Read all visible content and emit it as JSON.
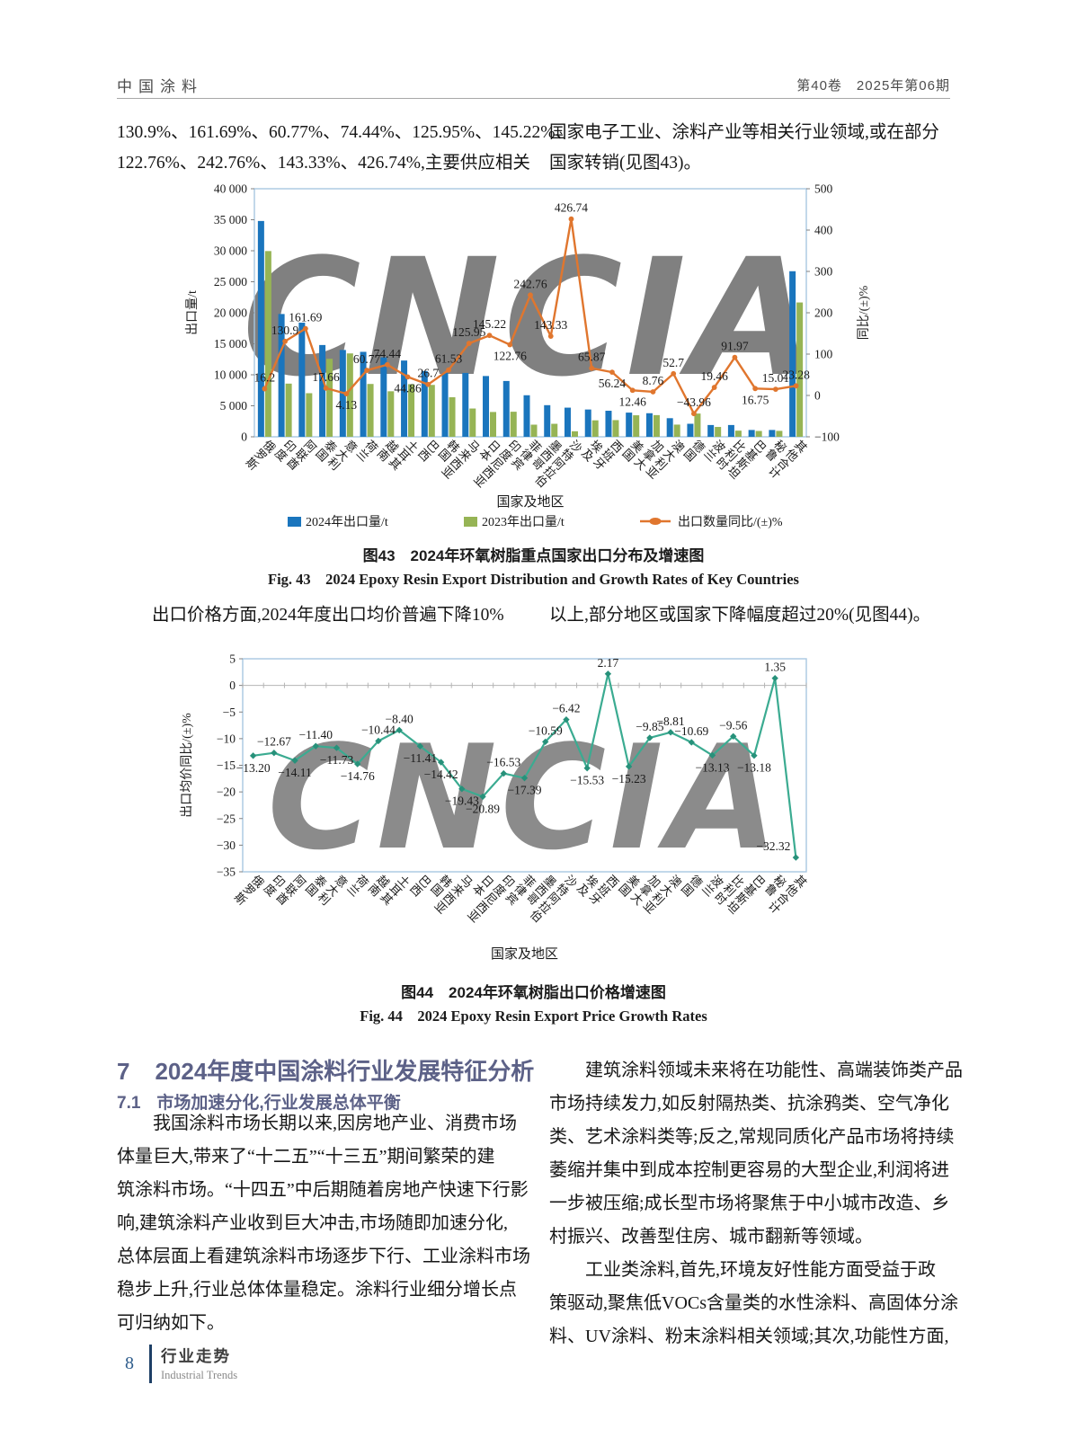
{
  "page": {
    "header": {
      "journal": "中国涂料",
      "issue": "第40卷　2025年第06期"
    },
    "para_top": {
      "left": [
        "130.9%、161.69%、60.77%、74.44%、125.95%、145.22%、",
        "122.76%、242.76%、143.33%、426.74%,主要供应相关"
      ],
      "right": [
        "国家电子工业、涂料产业等相关行业领域,或在部分",
        "国家转销(见图43)。"
      ]
    },
    "para_mid": {
      "left": "　　出口价格方面,2024年度出口均价普遍下降10%",
      "right": "以上,部分地区或国家下降幅度超过20%(见图44)。"
    },
    "section": {
      "number": "7",
      "title": "2024年度中国涂料行业发展特征分析"
    },
    "subsection": {
      "number": "7.1",
      "title": "市场加速分化,行业发展总体平衡"
    },
    "body_left": [
      "　　我国涂料市场长期以来,因房地产业、消费市场",
      "体量巨大,带来了“十二五”“十三五”期间繁荣的建",
      "筑涂料市场。“十四五”中后期随着房地产快速下行影",
      "响,建筑涂料产业收到巨大冲击,市场随即加速分化,",
      "总体层面上看建筑涂料市场逐步下行、工业涂料市场",
      "稳步上升,行业总体体量稳定。涂料行业细分增长点",
      "可归纳如下。"
    ],
    "body_right": [
      "　　建筑涂料领域未来将在功能性、高端装饰类产品",
      "市场持续发力,如反射隔热类、抗涂鸦类、空气净化",
      "类、艺术涂料类等;反之,常规同质化产品市场将持续",
      "萎缩并集中到成本控制更容易的大型企业,利润将进",
      "一步被压缩;成长型市场将聚焦于中小城市改造、乡",
      "村振兴、改善型住房、城市翻新等领域。",
      "　　工业类涂料,首先,环境友好性能方面受益于政",
      "策驱动,聚焦低VOCs含量类的水性涂料、高固体分涂",
      "料、UV涂料、粉末涂料相关领域;其次,功能性方面,"
    ],
    "footer": {
      "page_number": "8",
      "column_cn": "行业走势",
      "column_en": "Industrial Trends"
    }
  },
  "chart_data": [
    {
      "id": "fig43",
      "type": "bar",
      "caption_cn": "图43　2024年环氧树脂重点国家出口分布及增速图",
      "caption_en": "Fig. 43　2024 Epoxy Resin Export Distribution and Growth Rates of Key Countries",
      "x_title": "国家及地区",
      "watermark": "CNCIA",
      "legend_position": "bottom",
      "grid": false,
      "left_axis": {
        "title": "出口量/t",
        "min": 0,
        "max": 40000,
        "step": 5000
      },
      "right_axis": {
        "title": "同比/(±)%",
        "min": -100,
        "max": 500,
        "step": 100
      },
      "categories": [
        "俄罗斯",
        "印度",
        "阿联酋",
        "泰国",
        "意大利",
        "荷兰",
        "越南",
        "土耳其",
        "巴西",
        "韩国",
        "马来西亚",
        "日本",
        "印度尼西亚",
        "菲律宾",
        "墨西哥",
        "沙特阿拉伯",
        "埃及",
        "西班牙",
        "美国",
        "加拿大",
        "澳大利亚",
        "德国",
        "波兰",
        "比利时",
        "巴基斯坦",
        "秘鲁",
        "其他合计"
      ],
      "series": [
        {
          "name": "2024年出口量/t",
          "type": "bar",
          "color": "#1a75bd",
          "values": [
            34800,
            19800,
            18400,
            14800,
            14000,
            13700,
            12800,
            12300,
            10600,
            10300,
            10300,
            9800,
            9000,
            6700,
            5100,
            4700,
            4400,
            4200,
            3900,
            3800,
            3000,
            2100,
            1900,
            1900,
            1100,
            1100,
            26700
          ]
        },
        {
          "name": "2023年出口量/t",
          "type": "bar",
          "color": "#96b455",
          "values": [
            29950,
            8575,
            7030,
            12580,
            13445,
            8520,
            7340,
            8490,
            8365,
            6375,
            4560,
            4000,
            4040,
            1955,
            2095,
            890,
            2655,
            2690,
            3470,
            3495,
            1965,
            3750,
            1590,
            990,
            940,
            955,
            21660
          ]
        },
        {
          "name": "出口数量同比/(±)%",
          "type": "line",
          "color": "#e0762e",
          "axis": "right",
          "values": [
            16.2,
            130.9,
            161.69,
            17.66,
            4.13,
            60.77,
            74.44,
            44.86,
            26.7,
            61.53,
            125.95,
            145.22,
            122.76,
            242.76,
            143.33,
            426.74,
            65.87,
            56.24,
            12.46,
            8.76,
            52.7,
            -43.96,
            19.46,
            91.97,
            16.75,
            15.01,
            23.28
          ],
          "labels": [
            "16.2",
            "130.9",
            "161.69",
            "17.66",
            "4.13",
            "60.77",
            "74.44",
            "44.86",
            "26.7",
            "61.53",
            "125.95",
            "145.22",
            "122.76",
            "242.76",
            "143.33",
            "426.74",
            "65.87",
            "56.24",
            "12.46",
            "8.76",
            "52.7",
            "−43.96",
            "19.46",
            "91.97",
            "16.75",
            "15.01",
            "23.28"
          ],
          "label_side": [
            "a",
            "a",
            "a",
            "a",
            "b",
            "a",
            "a",
            "b",
            "a",
            "a",
            "a",
            "a",
            "b",
            "a",
            "a",
            "a",
            "a",
            "b",
            "b",
            "a",
            "a",
            "a",
            "a",
            "a",
            "b",
            "a",
            "a"
          ]
        }
      ]
    },
    {
      "id": "fig44",
      "type": "line",
      "caption_cn": "图44　2024年环氧树脂出口价格增速图",
      "caption_en": "Fig. 44　2024 Epoxy Resin Export Price Growth Rates",
      "x_title": "国家及地区",
      "watermark": "CNCIA",
      "grid": false,
      "y_axis": {
        "title": "出口均价同比/(±)%",
        "min": -35,
        "max": 5,
        "step": 5
      },
      "categories": [
        "俄罗斯",
        "印度",
        "阿联酋",
        "泰国",
        "意大利",
        "荷兰",
        "越南",
        "土耳其",
        "巴西",
        "韩国",
        "马来西亚",
        "日本",
        "印度尼西亚",
        "菲律宾",
        "墨西哥",
        "沙特阿拉伯",
        "埃及",
        "西班牙",
        "美国",
        "加拿大",
        "澳大利亚",
        "德国",
        "波兰",
        "比利时",
        "巴基斯坦",
        "秘鲁",
        "其他合计"
      ],
      "series": [
        {
          "name": "出口均价同比/(±)%",
          "type": "line",
          "color": "#3bab91",
          "marker_color": "#27917a",
          "values": [
            -13.2,
            -12.67,
            -14.11,
            -11.4,
            -11.73,
            -14.76,
            -10.44,
            -8.4,
            -11.41,
            -14.42,
            -19.43,
            -20.89,
            -16.53,
            -17.39,
            -10.59,
            -6.42,
            -15.53,
            2.17,
            -15.23,
            -9.85,
            -8.81,
            -10.69,
            -13.13,
            -9.56,
            -13.18,
            1.35,
            -32.32
          ],
          "labels": [
            "−13.20",
            "−12.67",
            "−14.11",
            "−11.40",
            "−11.73",
            "−14.76",
            "−10.44",
            "−8.40",
            "−11.41",
            "−14.42",
            "−19.43",
            "−20.89",
            "−16.53",
            "−17.39",
            "−10.59",
            "−6.42",
            "−15.53",
            "2.17",
            "−15.23",
            "−9.85",
            "−8.81",
            "−10.69",
            "−13.13",
            "−9.56",
            "−13.18",
            "1.35",
            "−32.32"
          ],
          "label_side": [
            "b",
            "a",
            "b",
            "a",
            "b",
            "b",
            "a",
            "a",
            "b",
            "b",
            "b",
            "b",
            "a",
            "b",
            "a",
            "a",
            "b",
            "a",
            "b",
            "a",
            "a",
            "a",
            "b",
            "a",
            "b",
            "a",
            "a"
          ]
        }
      ]
    }
  ]
}
